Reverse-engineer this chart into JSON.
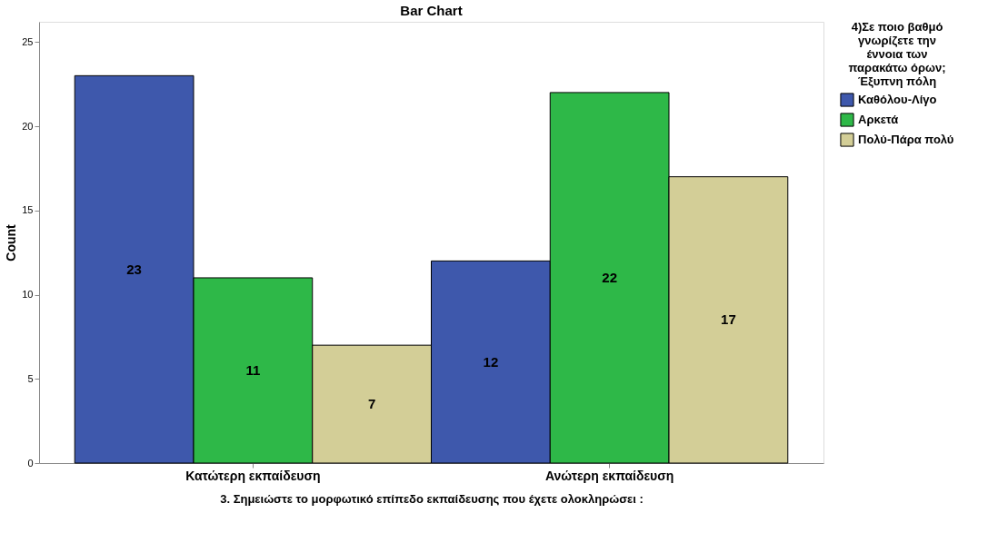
{
  "chart_data": {
    "type": "bar",
    "title": "Bar Chart",
    "categories": [
      "Κατώτερη εκπαίδευση",
      "Ανώτερη εκπαίδευση"
    ],
    "series": [
      {
        "name": "Καθόλου-Λίγο",
        "color": "#3e58ac",
        "values": [
          23,
          12
        ]
      },
      {
        "name": "Αρκετά",
        "color": "#2eb848",
        "values": [
          11,
          22
        ]
      },
      {
        "name": "Πολύ-Πάρα πολύ",
        "color": "#d3ce97",
        "values": [
          7,
          17
        ]
      }
    ],
    "xlabel": "3. Σημειώστε το μορφωτικό επίπεδο εκπαίδευσης που έχετε ολοκληρώσει :",
    "ylabel": "Count",
    "legend_title": "4)Σε ποιο βαθμό\nγνωρίζετε  την\nέννοια των\nπαρακάτω όρων;\nΈξυπνη πόλη",
    "ylim": [
      0,
      26.2
    ],
    "yticks": [
      0,
      5,
      10,
      15,
      20,
      25
    ],
    "data_labels": true,
    "grid": false,
    "legend": "right"
  }
}
